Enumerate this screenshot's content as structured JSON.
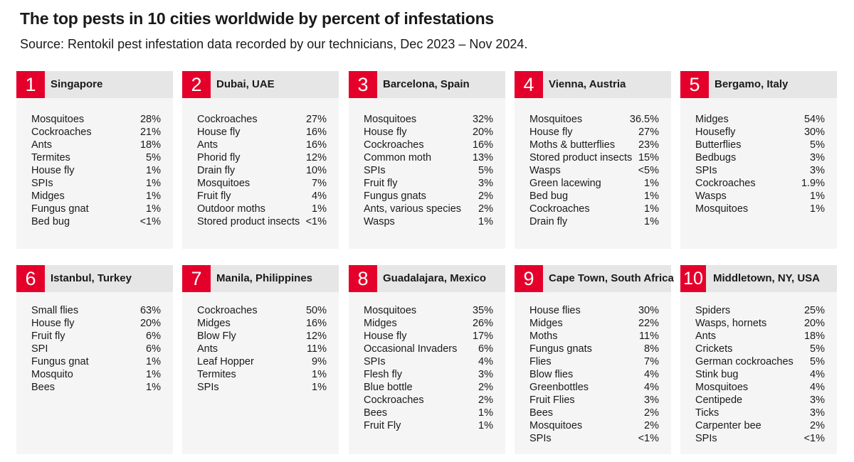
{
  "title": "The top pests in 10 cities worldwide by percent of infestations",
  "subtitle": "Source: Rentokil pest infestation data recorded by our technicians, Dec 2023 – Nov 2024.",
  "chart_data": {
    "type": "table",
    "cities": [
      {
        "rank": "1",
        "city": "Singapore",
        "pests": [
          {
            "name": "Mosquitoes",
            "value": "28%"
          },
          {
            "name": "Cockroaches",
            "value": "21%"
          },
          {
            "name": "Ants",
            "value": "18%"
          },
          {
            "name": "Termites",
            "value": "5%"
          },
          {
            "name": "House fly",
            "value": "1%"
          },
          {
            "name": "SPIs",
            "value": "1%"
          },
          {
            "name": "Midges",
            "value": "1%"
          },
          {
            "name": "Fungus gnat",
            "value": "1%"
          },
          {
            "name": "Bed bug",
            "value": "<1%"
          }
        ]
      },
      {
        "rank": "2",
        "city": "Dubai, UAE",
        "pests": [
          {
            "name": "Cockroaches",
            "value": "27%"
          },
          {
            "name": "House fly",
            "value": "16%"
          },
          {
            "name": "Ants",
            "value": "16%"
          },
          {
            "name": "Phorid fly",
            "value": "12%"
          },
          {
            "name": "Drain fly",
            "value": "10%"
          },
          {
            "name": "Mosquitoes",
            "value": "7%"
          },
          {
            "name": "Fruit fly",
            "value": "4%"
          },
          {
            "name": "Outdoor moths",
            "value": "1%"
          },
          {
            "name": "Stored product insects",
            "value": "<1%"
          }
        ]
      },
      {
        "rank": "3",
        "city": "Barcelona, Spain",
        "pests": [
          {
            "name": "Mosquitoes",
            "value": "32%"
          },
          {
            "name": "House fly",
            "value": "20%"
          },
          {
            "name": "Cockroaches",
            "value": "16%"
          },
          {
            "name": "Common moth",
            "value": "13%"
          },
          {
            "name": "SPIs",
            "value": "5%"
          },
          {
            "name": "Fruit fly",
            "value": "3%"
          },
          {
            "name": "Fungus gnats",
            "value": "2%"
          },
          {
            "name": "Ants, various species",
            "value": "2%"
          },
          {
            "name": "Wasps",
            "value": "1%"
          }
        ]
      },
      {
        "rank": "4",
        "city": "Vienna, Austria",
        "pests": [
          {
            "name": "Mosquitoes",
            "value": "36.5%"
          },
          {
            "name": "House fly",
            "value": "27%"
          },
          {
            "name": "Moths & butterflies",
            "value": "23%"
          },
          {
            "name": "Stored product insects",
            "value": "15%"
          },
          {
            "name": "Wasps",
            "value": "<5%"
          },
          {
            "name": "Green lacewing",
            "value": "1%"
          },
          {
            "name": "Bed bug",
            "value": "1%"
          },
          {
            "name": "Cockroaches",
            "value": "1%"
          },
          {
            "name": "Drain fly",
            "value": "1%"
          }
        ]
      },
      {
        "rank": "5",
        "city": "Bergamo, Italy",
        "pests": [
          {
            "name": "Midges",
            "value": "54%"
          },
          {
            "name": "Housefly",
            "value": "30%"
          },
          {
            "name": "Butterflies",
            "value": "5%"
          },
          {
            "name": "Bedbugs",
            "value": "3%"
          },
          {
            "name": "SPIs",
            "value": "3%"
          },
          {
            "name": "Cockroaches",
            "value": "1.9%"
          },
          {
            "name": "Wasps",
            "value": "1%"
          },
          {
            "name": "Mosquitoes",
            "value": "1%"
          }
        ]
      },
      {
        "rank": "6",
        "city": "Istanbul, Turkey",
        "pests": [
          {
            "name": "Small flies",
            "value": "63%"
          },
          {
            "name": "House fly",
            "value": "20%"
          },
          {
            "name": "Fruit fly",
            "value": "6%"
          },
          {
            "name": "SPI",
            "value": "6%"
          },
          {
            "name": "Fungus gnat",
            "value": "1%"
          },
          {
            "name": "Mosquito",
            "value": "1%"
          },
          {
            "name": "Bees",
            "value": "1%"
          }
        ]
      },
      {
        "rank": "7",
        "city": "Manila, Philippines",
        "pests": [
          {
            "name": "Cockroaches",
            "value": "50%"
          },
          {
            "name": "Midges",
            "value": "16%"
          },
          {
            "name": "Blow Fly",
            "value": "12%"
          },
          {
            "name": "Ants",
            "value": "11%"
          },
          {
            "name": "Leaf Hopper",
            "value": "9%"
          },
          {
            "name": "Termites",
            "value": "1%"
          },
          {
            "name": "SPIs",
            "value": "1%"
          }
        ]
      },
      {
        "rank": "8",
        "city": "Guadalajara, Mexico",
        "pests": [
          {
            "name": "Mosquitoes",
            "value": "35%"
          },
          {
            "name": "Midges",
            "value": "26%"
          },
          {
            "name": "House fly",
            "value": "17%"
          },
          {
            "name": "Occasional Invaders",
            "value": "6%"
          },
          {
            "name": "SPIs",
            "value": "4%"
          },
          {
            "name": "Flesh fly",
            "value": "3%"
          },
          {
            "name": "Blue bottle",
            "value": "2%"
          },
          {
            "name": "Cockroaches",
            "value": "2%"
          },
          {
            "name": "Bees",
            "value": "1%"
          },
          {
            "name": "Fruit Fly",
            "value": "1%"
          }
        ]
      },
      {
        "rank": "9",
        "city": "Cape Town, South Africa",
        "pests": [
          {
            "name": "House flies",
            "value": "30%"
          },
          {
            "name": "Midges",
            "value": "22%"
          },
          {
            "name": "Moths",
            "value": "11%"
          },
          {
            "name": "Fungus gnats",
            "value": "8%"
          },
          {
            "name": "Flies",
            "value": "7%"
          },
          {
            "name": "Blow flies",
            "value": "4%"
          },
          {
            "name": "Greenbottles",
            "value": "4%"
          },
          {
            "name": "Fruit Flies",
            "value": "3%"
          },
          {
            "name": "Bees",
            "value": "2%"
          },
          {
            "name": "Mosquitoes",
            "value": "2%"
          },
          {
            "name": "SPIs",
            "value": "<1%"
          }
        ]
      },
      {
        "rank": "10",
        "city": "Middletown, NY, USA",
        "pests": [
          {
            "name": "Spiders",
            "value": "25%"
          },
          {
            "name": "Wasps, hornets",
            "value": "20%"
          },
          {
            "name": "Ants",
            "value": "18%"
          },
          {
            "name": "Crickets",
            "value": "5%"
          },
          {
            "name": "German cockroaches",
            "value": "5%"
          },
          {
            "name": "Stink bug",
            "value": "4%"
          },
          {
            "name": "Mosquitoes",
            "value": "4%"
          },
          {
            "name": "Centipede",
            "value": "3%"
          },
          {
            "name": "Ticks",
            "value": "3%"
          },
          {
            "name": "Carpenter bee",
            "value": "2%"
          },
          {
            "name": "SPIs",
            "value": "<1%"
          }
        ]
      }
    ],
    "accent_color": "#e4002b",
    "header_color": "#e6e6e6",
    "card_color": "#f5f5f5"
  }
}
